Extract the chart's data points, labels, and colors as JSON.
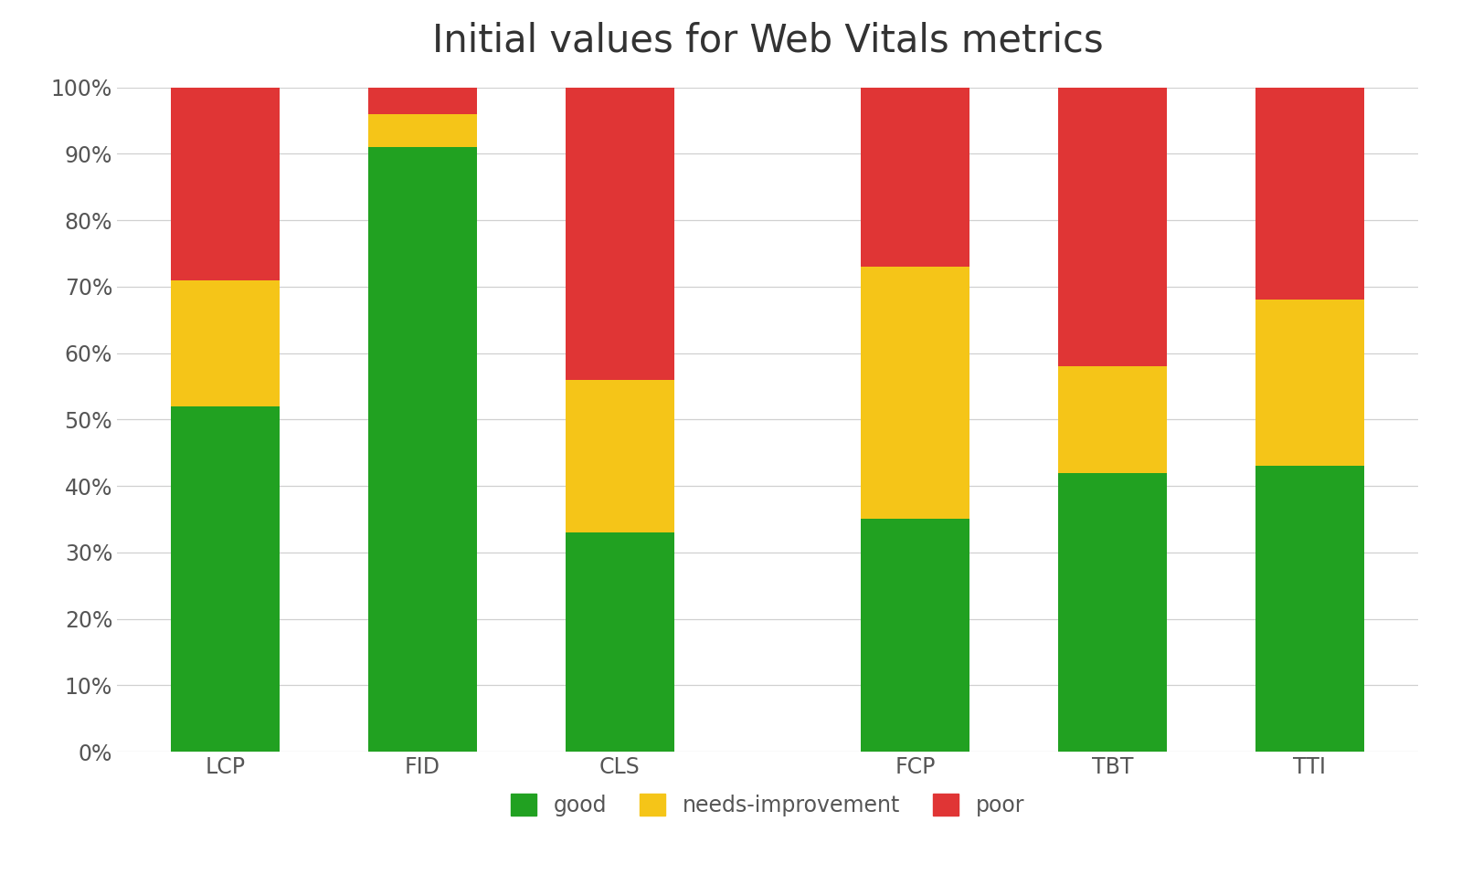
{
  "title": "Initial values for Web Vitals metrics",
  "categories": [
    "LCP",
    "FID",
    "CLS",
    "FCP",
    "TBT",
    "TTI"
  ],
  "good": [
    0.52,
    0.91,
    0.33,
    0.35,
    0.42,
    0.43
  ],
  "needs_improvement": [
    0.19,
    0.05,
    0.23,
    0.38,
    0.16,
    0.25
  ],
  "poor": [
    0.29,
    0.04,
    0.44,
    0.27,
    0.42,
    0.32
  ],
  "color_good": "#21a121",
  "color_needs": "#f5c518",
  "color_poor": "#e03535",
  "legend_labels": [
    "good",
    "needs-improvement",
    "poor"
  ],
  "ylabel_ticks": [
    "0%",
    "10%",
    "20%",
    "30%",
    "40%",
    "50%",
    "60%",
    "70%",
    "80%",
    "90%",
    "100%"
  ],
  "background_color": "#ffffff",
  "title_fontsize": 30,
  "tick_fontsize": 17,
  "tick_color": "#555555",
  "legend_fontsize": 17,
  "bar_width": 0.55,
  "x_positions": [
    0,
    1,
    2,
    3.5,
    4.5,
    5.5
  ],
  "xlim_left": -0.55,
  "xlim_right": 6.05,
  "grid_color": "#d0d0d0"
}
